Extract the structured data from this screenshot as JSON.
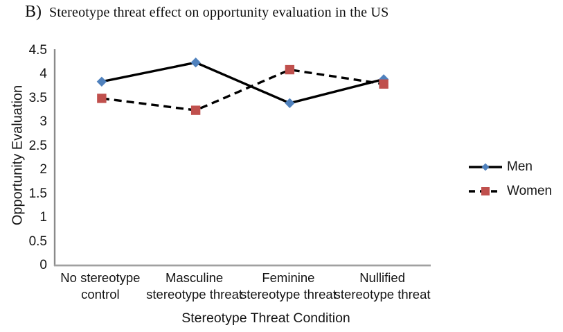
{
  "figure": {
    "title_prefix": "B)",
    "title_text": "Stereotype threat effect on opportunity evaluation in the US"
  },
  "chart_data": {
    "type": "line",
    "title": "B) Stereotype threat effect on opportunity evaluation in the US",
    "xlabel": "Stereotype Threat Condition",
    "ylabel": "Opportunity Evaluation",
    "categories": [
      "No stereotype control",
      "Masculine stereotype threat",
      "Feminine stereotype threat",
      "Nullified stereotype threat"
    ],
    "category_display_lines": [
      [
        "No stereotype",
        "control"
      ],
      [
        "Masculine",
        "stereotype threat"
      ],
      [
        "Feminine",
        "stereotype threat"
      ],
      [
        "Nullified",
        "stereotype threat"
      ]
    ],
    "series": [
      {
        "name": "Men",
        "values": [
          3.85,
          4.25,
          3.4,
          3.9
        ],
        "line_style": "solid",
        "line_color": "#000000",
        "marker": "diamond",
        "marker_color": "#4F81BD"
      },
      {
        "name": "Women",
        "values": [
          3.5,
          3.25,
          4.1,
          3.8
        ],
        "line_style": "dashed",
        "line_color": "#000000",
        "marker": "square",
        "marker_color": "#C0504D"
      }
    ],
    "ylim": [
      0,
      4.5
    ],
    "ytick_step": 0.5,
    "yticks": [
      "0",
      "0.5",
      "1",
      "1.5",
      "2",
      "2.5",
      "3",
      "3.5",
      "4",
      "4.5"
    ],
    "grid": false,
    "legend_position": "right",
    "axis_color": "#a0a0a0"
  }
}
